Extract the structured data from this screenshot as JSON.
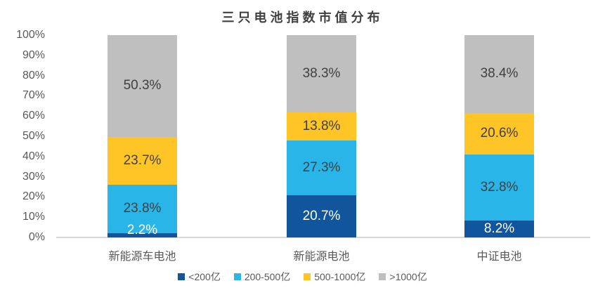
{
  "chart_data": {
    "type": "bar",
    "stacked": true,
    "title": "三只电池指数市值分布",
    "categories": [
      "新能源车电池",
      "新能源电池",
      "中证电池"
    ],
    "series": [
      {
        "name": "<200亿",
        "color": "#11559D",
        "label_color": "#FFFFFF",
        "values": [
          2.2,
          20.7,
          8.2
        ]
      },
      {
        "name": "200-500亿",
        "color": "#29B5E8",
        "label_color": "#404040",
        "values": [
          23.8,
          27.3,
          32.8
        ]
      },
      {
        "name": "500-1000亿",
        "color": "#FFC425",
        "label_color": "#404040",
        "values": [
          23.7,
          13.8,
          20.6
        ]
      },
      {
        "name": ">1000亿",
        "color": "#BFBFBF",
        "label_color": "#404040",
        "values": [
          50.3,
          38.3,
          38.4
        ]
      }
    ],
    "y_ticks": [
      "100%",
      "90%",
      "80%",
      "70%",
      "60%",
      "50%",
      "40%",
      "30%",
      "20%",
      "10%",
      "0%"
    ],
    "ylim": [
      0,
      100
    ],
    "value_suffix": "%",
    "grid": false,
    "legend_position": "bottom",
    "axis_line_color": "#D9D9D9",
    "tick_text_color": "#595959",
    "title_color": "#404040"
  }
}
